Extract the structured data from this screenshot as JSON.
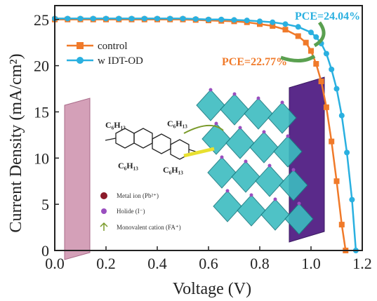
{
  "chart_data": {
    "type": "line",
    "xlabel": "Voltage (V)",
    "ylabel": "Current Density (mA/cm²)",
    "xlim": [
      0.0,
      1.2
    ],
    "ylim": [
      0,
      26.5
    ],
    "x_ticks": [
      "0.0",
      "0.2",
      "0.4",
      "0.6",
      "0.8",
      "1.0",
      "1.2"
    ],
    "y_ticks": [
      "0",
      "5",
      "10",
      "15",
      "20",
      "25"
    ],
    "grid": false,
    "legend_position": "top-left",
    "series": [
      {
        "name": "control",
        "color": "#f07a2a",
        "marker": "square",
        "x": [
          0.0,
          0.05,
          0.1,
          0.15,
          0.2,
          0.25,
          0.3,
          0.35,
          0.4,
          0.45,
          0.5,
          0.55,
          0.6,
          0.65,
          0.7,
          0.75,
          0.8,
          0.85,
          0.9,
          0.95,
          0.98,
          1.0,
          1.02,
          1.04,
          1.06,
          1.08,
          1.1,
          1.12,
          1.135
        ],
        "y": [
          25.0,
          25.0,
          25.0,
          25.0,
          25.0,
          25.0,
          25.0,
          25.0,
          25.0,
          25.0,
          25.0,
          24.95,
          24.9,
          24.85,
          24.8,
          24.7,
          24.5,
          24.3,
          23.9,
          23.2,
          22.5,
          21.6,
          20.2,
          18.3,
          15.5,
          11.8,
          7.5,
          2.8,
          0.0
        ]
      },
      {
        "name": "w  IDT-OD",
        "color": "#2ab0e0",
        "marker": "circle",
        "x": [
          0.0,
          0.05,
          0.1,
          0.15,
          0.2,
          0.25,
          0.3,
          0.35,
          0.4,
          0.45,
          0.5,
          0.55,
          0.6,
          0.65,
          0.7,
          0.75,
          0.8,
          0.85,
          0.9,
          0.95,
          1.0,
          1.02,
          1.04,
          1.06,
          1.08,
          1.1,
          1.12,
          1.14,
          1.16,
          1.175
        ],
        "y": [
          25.1,
          25.1,
          25.1,
          25.1,
          25.1,
          25.1,
          25.1,
          25.1,
          25.1,
          25.1,
          25.1,
          25.05,
          25.0,
          25.0,
          24.95,
          24.9,
          24.8,
          24.7,
          24.5,
          24.2,
          23.6,
          23.1,
          22.4,
          21.3,
          19.6,
          17.5,
          14.6,
          10.6,
          5.5,
          0.0
        ]
      }
    ],
    "annotations": [
      {
        "text": "PCE=24.04%",
        "color": "#2ab0e0"
      },
      {
        "text": "PCE=22.77%",
        "color": "#f07a2a"
      }
    ],
    "inset": {
      "molecule_label_left": "C₆H₁₃",
      "molecule_label_right": "C₆H₁₃",
      "molecule_label_bottom_left": "C₆H₁₃",
      "molecule_label_bottom_right": "C₆H₁₃",
      "key": [
        {
          "label": "Metal ion (Pb²⁺)",
          "color": "#8b1a2a"
        },
        {
          "label": "Holide (I⁻)",
          "color": "#9a4fbf"
        },
        {
          "label": "Monovalent cation (FA⁺)",
          "color": "#7a9a2a"
        }
      ]
    }
  }
}
